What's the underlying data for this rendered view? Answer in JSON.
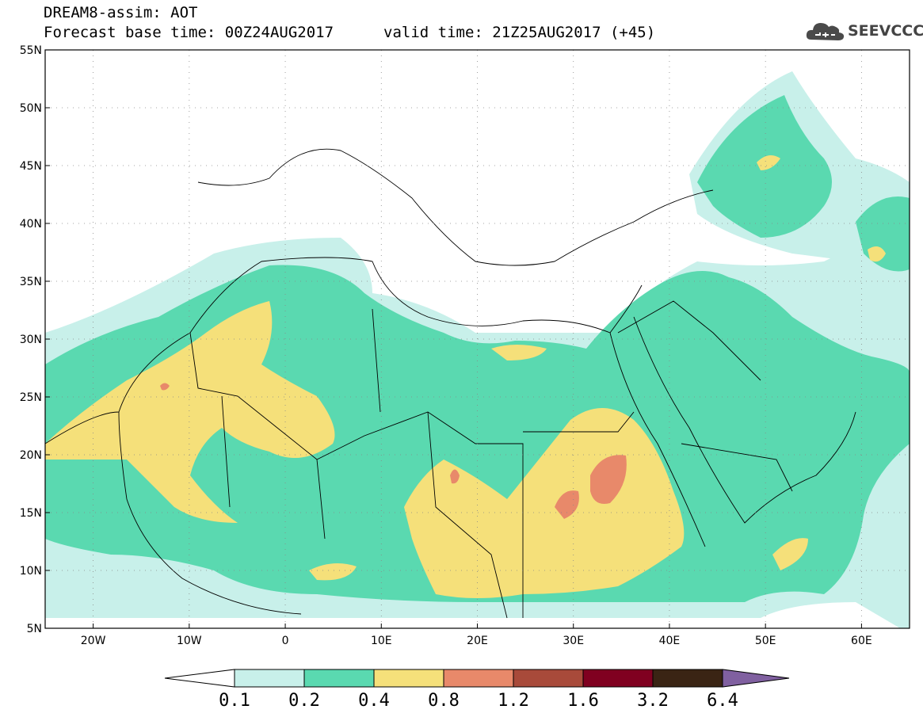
{
  "header": {
    "title": "DREAM8-assim: AOT",
    "base_time": "Forecast base time: 00Z24AUG2017",
    "valid_time": "valid time: 21Z25AUG2017 (+45)",
    "logo_text": "SEEVCCC",
    "logo_icon": "cloud-icon"
  },
  "map": {
    "lat_labels": [
      "55N",
      "50N",
      "45N",
      "40N",
      "35N",
      "30N",
      "25N",
      "20N",
      "15N",
      "10N",
      "5N"
    ],
    "lon_labels": [
      "20W",
      "10W",
      "0",
      "10E",
      "20E",
      "30E",
      "40E",
      "50E",
      "60E"
    ],
    "lon_range": [
      -25,
      65
    ],
    "lat_range": [
      5,
      55
    ],
    "grid": "dotted",
    "colors": {
      "c1": "#c8f0ea",
      "c2": "#5ad9b0",
      "c3": "#f5e07a",
      "c4": "#e8896a",
      "c5": "#a84a3a",
      "c6": "#800020",
      "c7": "#3a2414",
      "c8": "#8060a0"
    }
  },
  "colorbar": {
    "labels": [
      "0.1",
      "0.2",
      "0.4",
      "0.8",
      "1.2",
      "1.6",
      "3.2",
      "6.4"
    ]
  }
}
